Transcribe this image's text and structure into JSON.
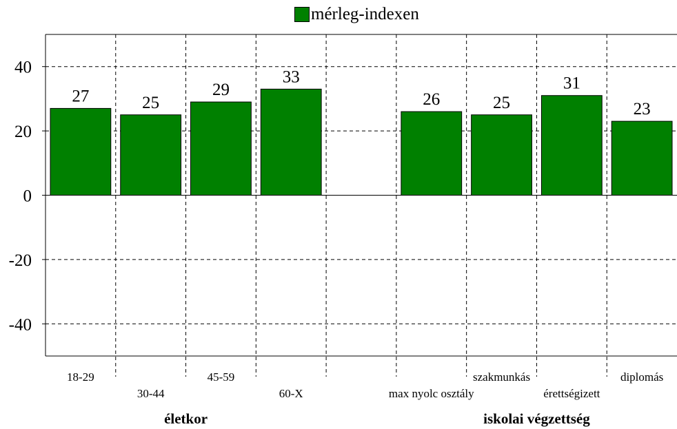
{
  "chart_data": {
    "type": "bar",
    "legend": {
      "label": "mérleg-indexen",
      "placement": "top-center"
    },
    "colors": {
      "bar": "#008000",
      "bar_border": "#000000",
      "grid": "#000000"
    },
    "series": [
      {
        "name": "mérleg-indexen",
        "values": [
          27,
          25,
          29,
          33,
          null,
          26,
          25,
          31,
          23
        ]
      }
    ],
    "categories": [
      "18-29",
      "30-44",
      "45-59",
      "60-X",
      "",
      "max nyolc osztály",
      "szakmunkás",
      "érettségizett",
      "diplomás"
    ],
    "data_labels": [
      "27",
      "25",
      "29",
      "33",
      "",
      "26",
      "25",
      "31",
      "23"
    ],
    "groups": [
      {
        "label": "életkor",
        "categories": [
          "18-29",
          "30-44",
          "45-59",
          "60-X"
        ]
      },
      {
        "label": "iskolai végzettség",
        "categories": [
          "max nyolc osztály",
          "szakmunkás",
          "érettségizett",
          "diplomás"
        ]
      }
    ],
    "ylim": [
      -50,
      50
    ],
    "yticks": [
      -40,
      -20,
      0,
      20,
      40
    ],
    "ytick_labels": [
      "-40",
      "-20",
      "0",
      "20",
      "40"
    ],
    "grid": true,
    "xlabel": "",
    "ylabel": "",
    "title": ""
  }
}
